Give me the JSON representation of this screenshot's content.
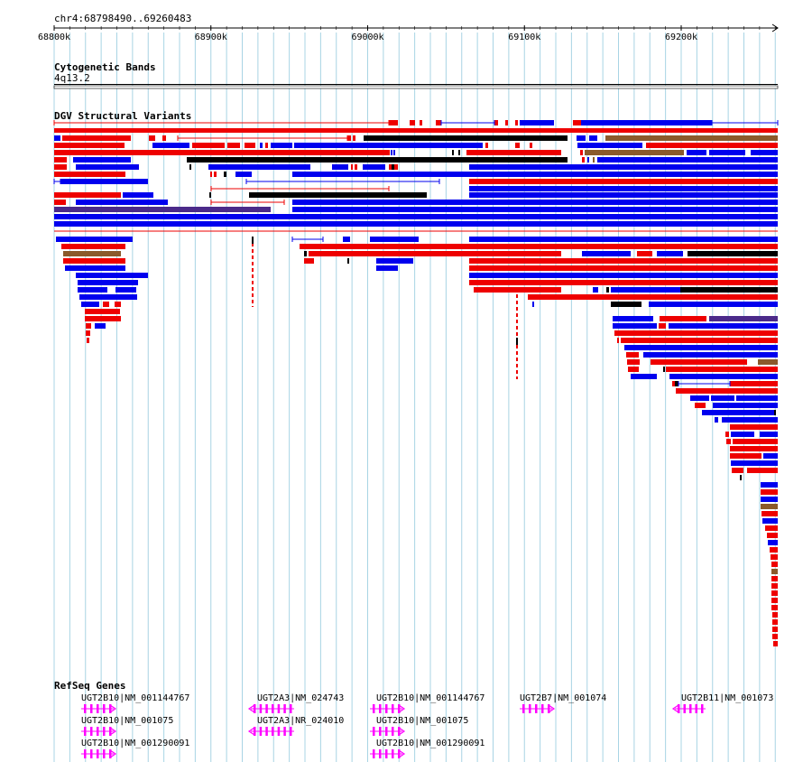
{
  "locus": "chr4:68798490..69260483",
  "ruler": {
    "ticks": [
      {
        "label": "68800k",
        "pos": 68800000
      },
      {
        "label": "68900k",
        "pos": 68900000
      },
      {
        "label": "69000k",
        "pos": 69000000
      },
      {
        "label": "69100k",
        "pos": 69100000
      },
      {
        "label": "69200k",
        "pos": 69200000
      }
    ]
  },
  "tracks": {
    "cytoband": {
      "title": "Cytogenetic Bands",
      "band": "4q13.2"
    },
    "dgv": {
      "title": "DGV Structural Variants"
    },
    "refseq": {
      "title": "RefSeq Genes",
      "genes": [
        {
          "label": "UGT2B10|NM_001144767",
          "strand": "+"
        },
        {
          "label": "UGT2B10|NM_001075",
          "strand": "+"
        },
        {
          "label": "UGT2B10|NM_001290091",
          "strand": "+"
        },
        {
          "label": "UGT2A3|NM_024743",
          "strand": "-"
        },
        {
          "label": "UGT2A3|NR_024010",
          "strand": "-"
        },
        {
          "label": "UGT2B10|NM_001144767",
          "strand": "+"
        },
        {
          "label": "UGT2B10|NM_001075",
          "strand": "+"
        },
        {
          "label": "UGT2B10|NM_001290091",
          "strand": "+"
        },
        {
          "label": "UGT2B7|NM_001074",
          "strand": "+"
        },
        {
          "label": "UGT2B11|NM_001073",
          "strand": "-"
        }
      ]
    }
  },
  "colors": {
    "gain": "#0000ee",
    "loss": "#ee0000",
    "complex": "#000000",
    "inversion": "#8b5a2b",
    "otherSV": "#4b2a8a",
    "gene": "#ff00ff",
    "grid": "#a8d4e4"
  }
}
